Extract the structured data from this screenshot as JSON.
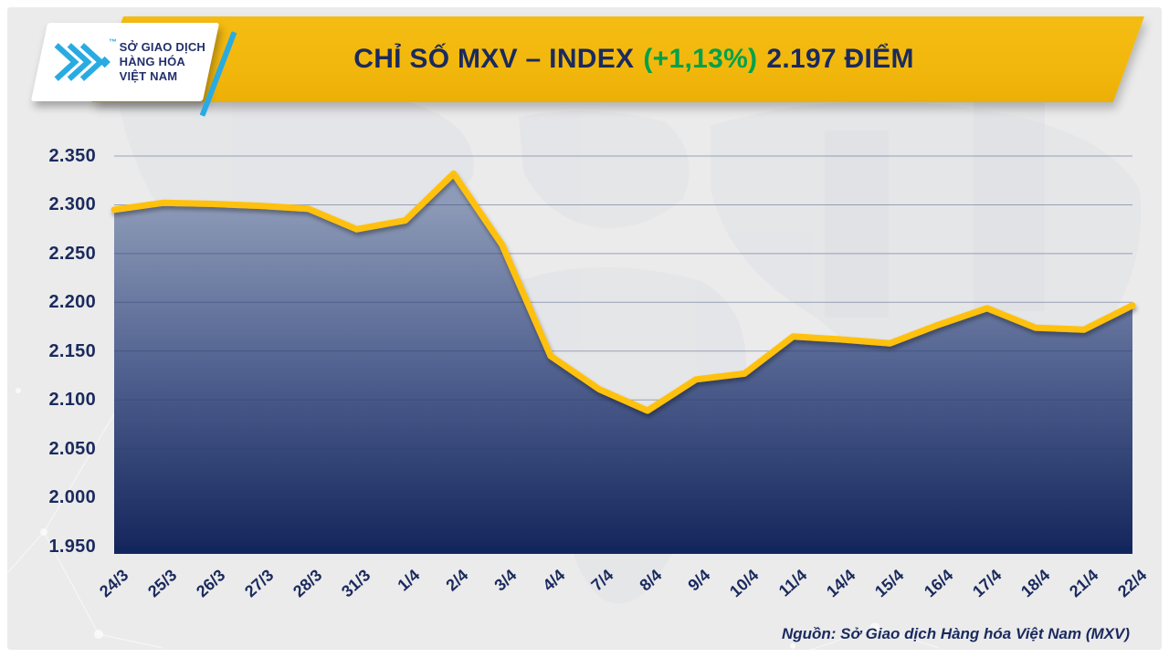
{
  "header": {
    "logo": {
      "line1": "SỞ GIAO DỊCH",
      "line2": "HÀNG HÓA",
      "line3": "VIỆT NAM",
      "trademark": "™"
    },
    "title": {
      "main": "CHỈ SỐ MXV – INDEX",
      "change": "(+1,13%)",
      "value": "2.197 ĐIỂM"
    }
  },
  "footer": {
    "source": "Nguồn: Sở Giao dịch Hàng hóa Việt Nam (MXV)"
  },
  "colors": {
    "banner_gold": "#F2B70C",
    "navy": "#1A2A5E",
    "green": "#00A14B",
    "line_gold": "#FFC10E",
    "area_top": "#8E9BB8",
    "area_mid": "#4E5F8E",
    "area_bottom": "#13255B",
    "logo_cyan": "#29ABE2",
    "background": "#EBEBEB",
    "axis_bar": "#12265E"
  },
  "chart_data": {
    "type": "area",
    "title": "CHỈ SỐ MXV – INDEX (+1,13%) 2.197 ĐIỂM",
    "series_name": "MXV-Index",
    "categories": [
      "24/3",
      "25/3",
      "26/3",
      "27/3",
      "28/3",
      "31/3",
      "1/4",
      "2/4",
      "3/4",
      "4/4",
      "7/4",
      "8/4",
      "9/4",
      "10/4",
      "11/4",
      "14/4",
      "15/4",
      "16/4",
      "17/4",
      "18/4",
      "21/4",
      "22/4"
    ],
    "values": [
      2295,
      2302,
      2301,
      2299,
      2296,
      2275,
      2284,
      2332,
      2259,
      2145,
      2111,
      2089,
      2121,
      2127,
      2165,
      2162,
      2158,
      2177,
      2194,
      2174,
      2172,
      2197
    ],
    "ylim": [
      1950,
      2350
    ],
    "ytick_labels": [
      "2.350",
      "2.300",
      "2.250",
      "2.200",
      "2.150",
      "2.100",
      "2.050",
      "2.000",
      "1.950"
    ],
    "xlabel": "",
    "ylabel": "",
    "grid": "horizontal",
    "legend": "none",
    "last_value_label": "2.197",
    "change_percent_label": "+1,13%"
  }
}
